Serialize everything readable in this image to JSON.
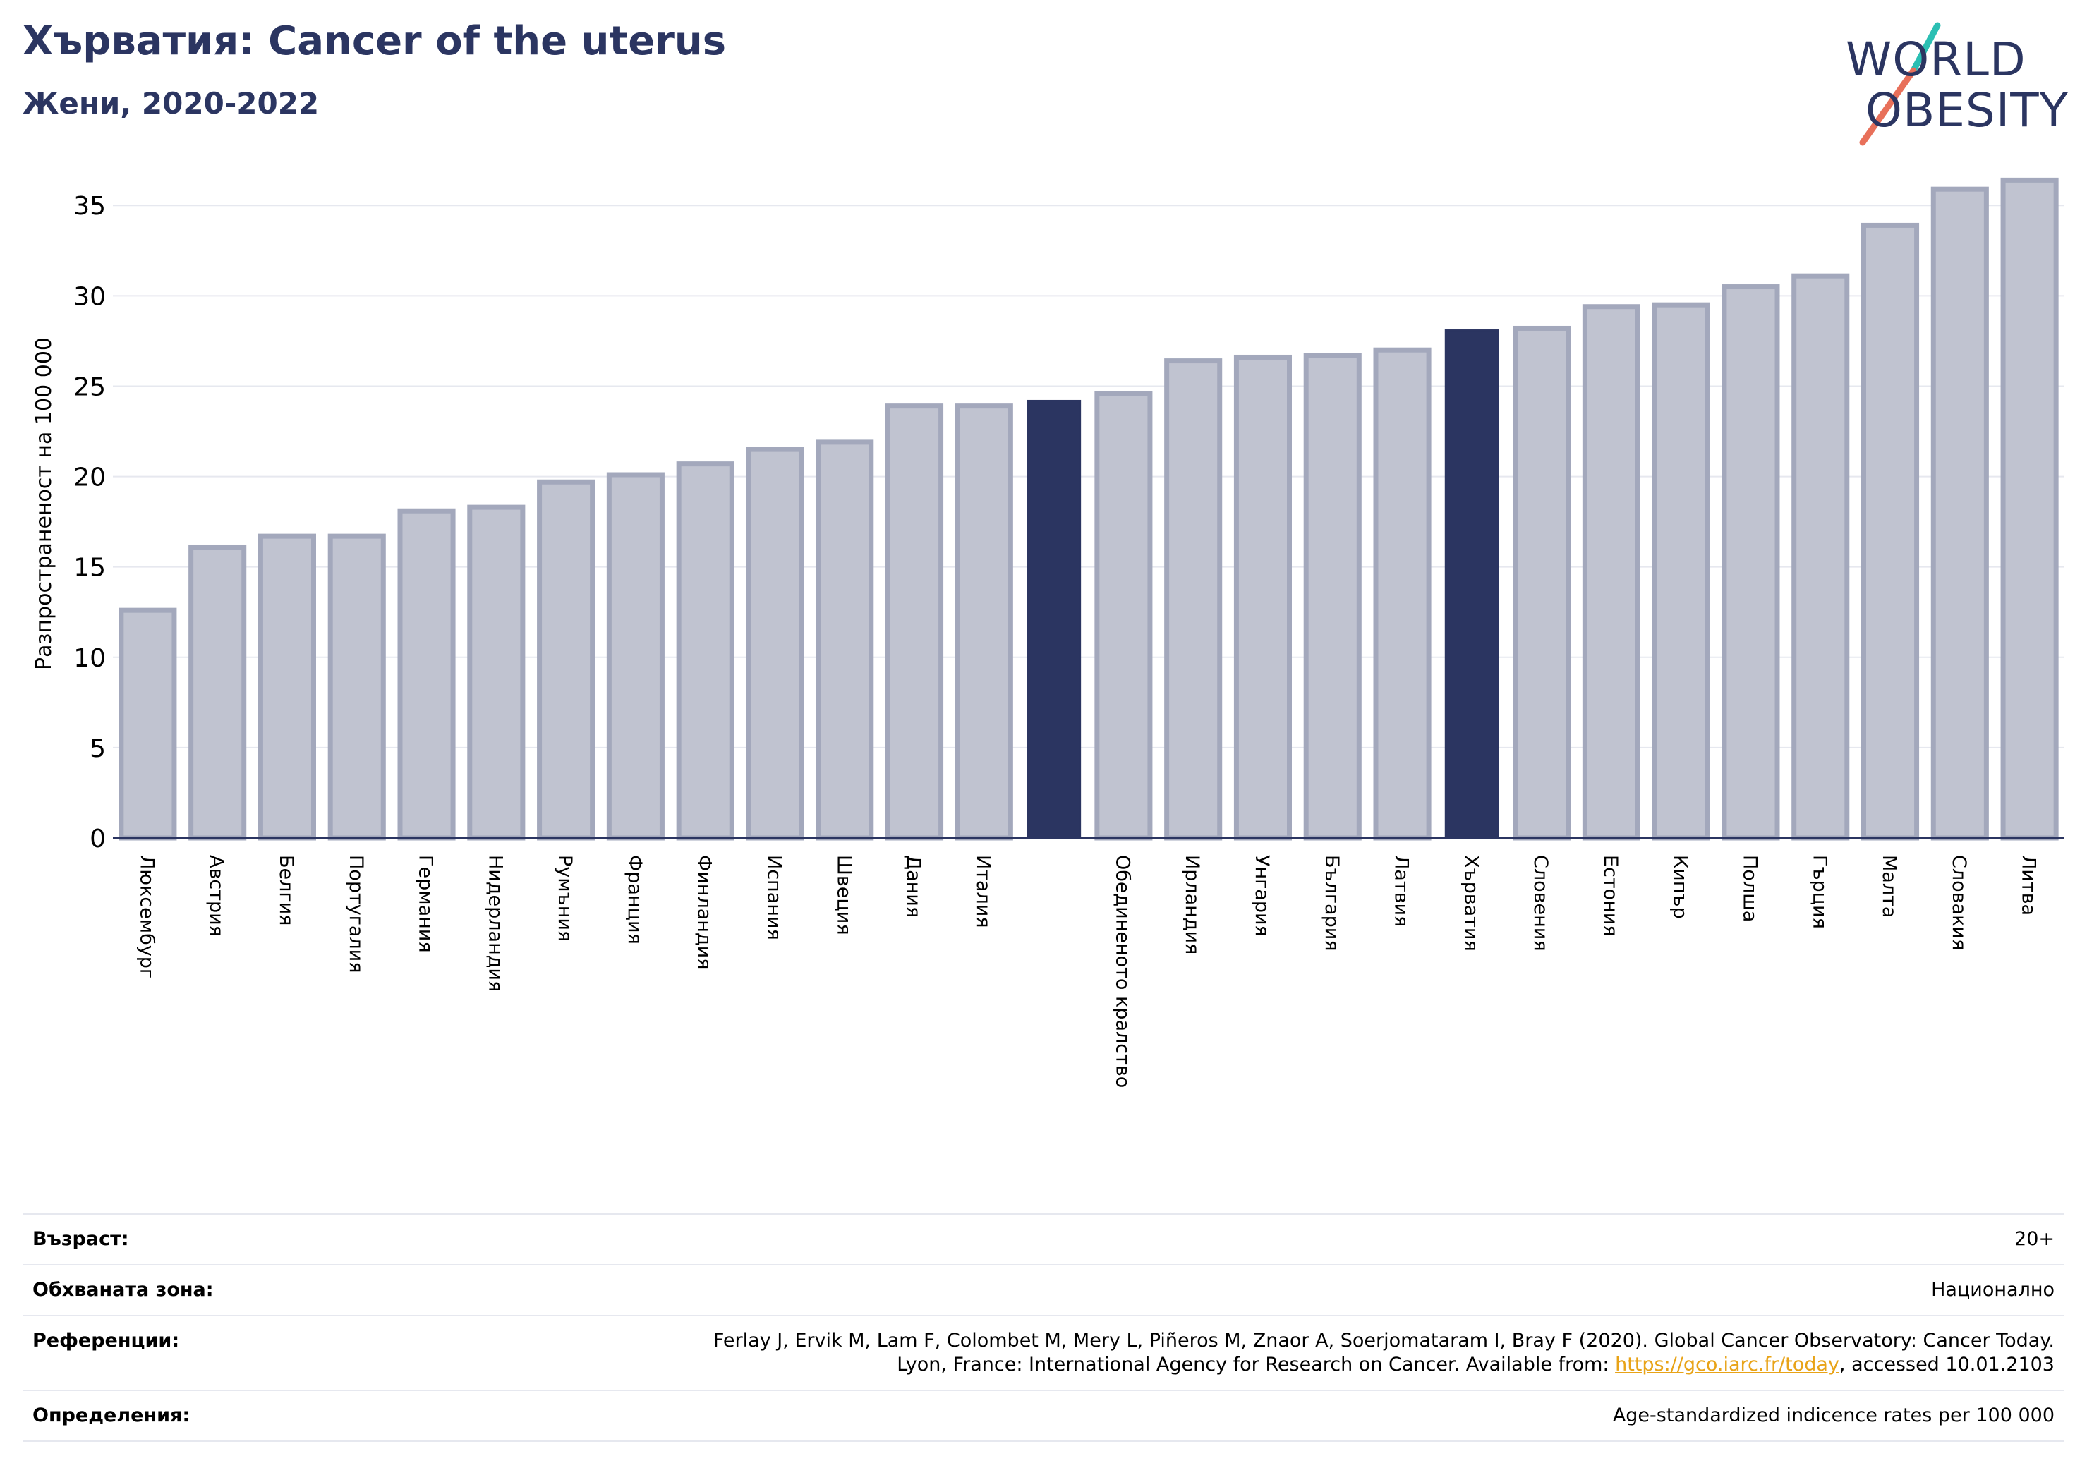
{
  "title": "Хърватия: Cancer of the uterus",
  "subtitle": "Жени, 2020-2022",
  "logo": {
    "line1": "WORLD",
    "line2": "OBESITY",
    "slash_colors": [
      "#2bbfb3",
      "#e8705a"
    ]
  },
  "colors": {
    "bar": "#c0c3d0",
    "bar_edge": "#a3a8bc",
    "highlight": "#2b3561",
    "grid": "#e6e8ef",
    "axis": "#2b3561"
  },
  "chart_data": {
    "type": "bar",
    "ylabel": "Разпространеност  на 100 000",
    "ylim": [
      0,
      37
    ],
    "yticks": [
      0,
      5,
      10,
      15,
      20,
      25,
      30,
      35
    ],
    "grid": true,
    "categories": [
      "Люксембург",
      "Австрия",
      "Белгия",
      "Португалия",
      "Германия",
      "Нидерландия",
      "Румъния",
      "Франция",
      "Финландия",
      "Испания",
      "Швеция",
      "Дания",
      "Италия",
      "",
      "Обединеното кралство",
      "Ирландия",
      "Унгария",
      "България",
      "Латвия",
      "Хърватия",
      "Словения",
      "Естония",
      "Кипър",
      "Полша",
      "Гърция",
      "Малта",
      "Словакия",
      "Литва"
    ],
    "values": [
      12.6,
      16.1,
      16.7,
      16.7,
      18.1,
      18.3,
      19.7,
      20.1,
      20.7,
      21.5,
      21.9,
      23.9,
      23.9,
      24.2,
      24.6,
      26.4,
      26.6,
      26.7,
      27.0,
      28.1,
      28.2,
      29.4,
      29.5,
      30.5,
      31.1,
      33.9,
      35.9,
      36.4
    ],
    "highlight": [
      13,
      19
    ]
  },
  "info": {
    "age_label": "Възраст:",
    "age_value": "20+",
    "area_label": "Обхваната зона:",
    "area_value": "Национално",
    "ref_label": "Референции:",
    "ref_line1": "Ferlay J, Ervik M, Lam F, Colombet M, Mery L, Piñeros M, Znaor A, Soerjomataram I, Bray F (2020). Global Cancer Observatory: Cancer Today.",
    "ref_line2_pre": "Lyon, France: International Agency for Research on Cancer. Available from: ",
    "ref_link": "https://gco.iarc.fr/today",
    "ref_line2_post": ", accessed 10.01.2103",
    "def_label": "Определения:",
    "def_value": "Age-standardized indicence rates per 100 000"
  }
}
